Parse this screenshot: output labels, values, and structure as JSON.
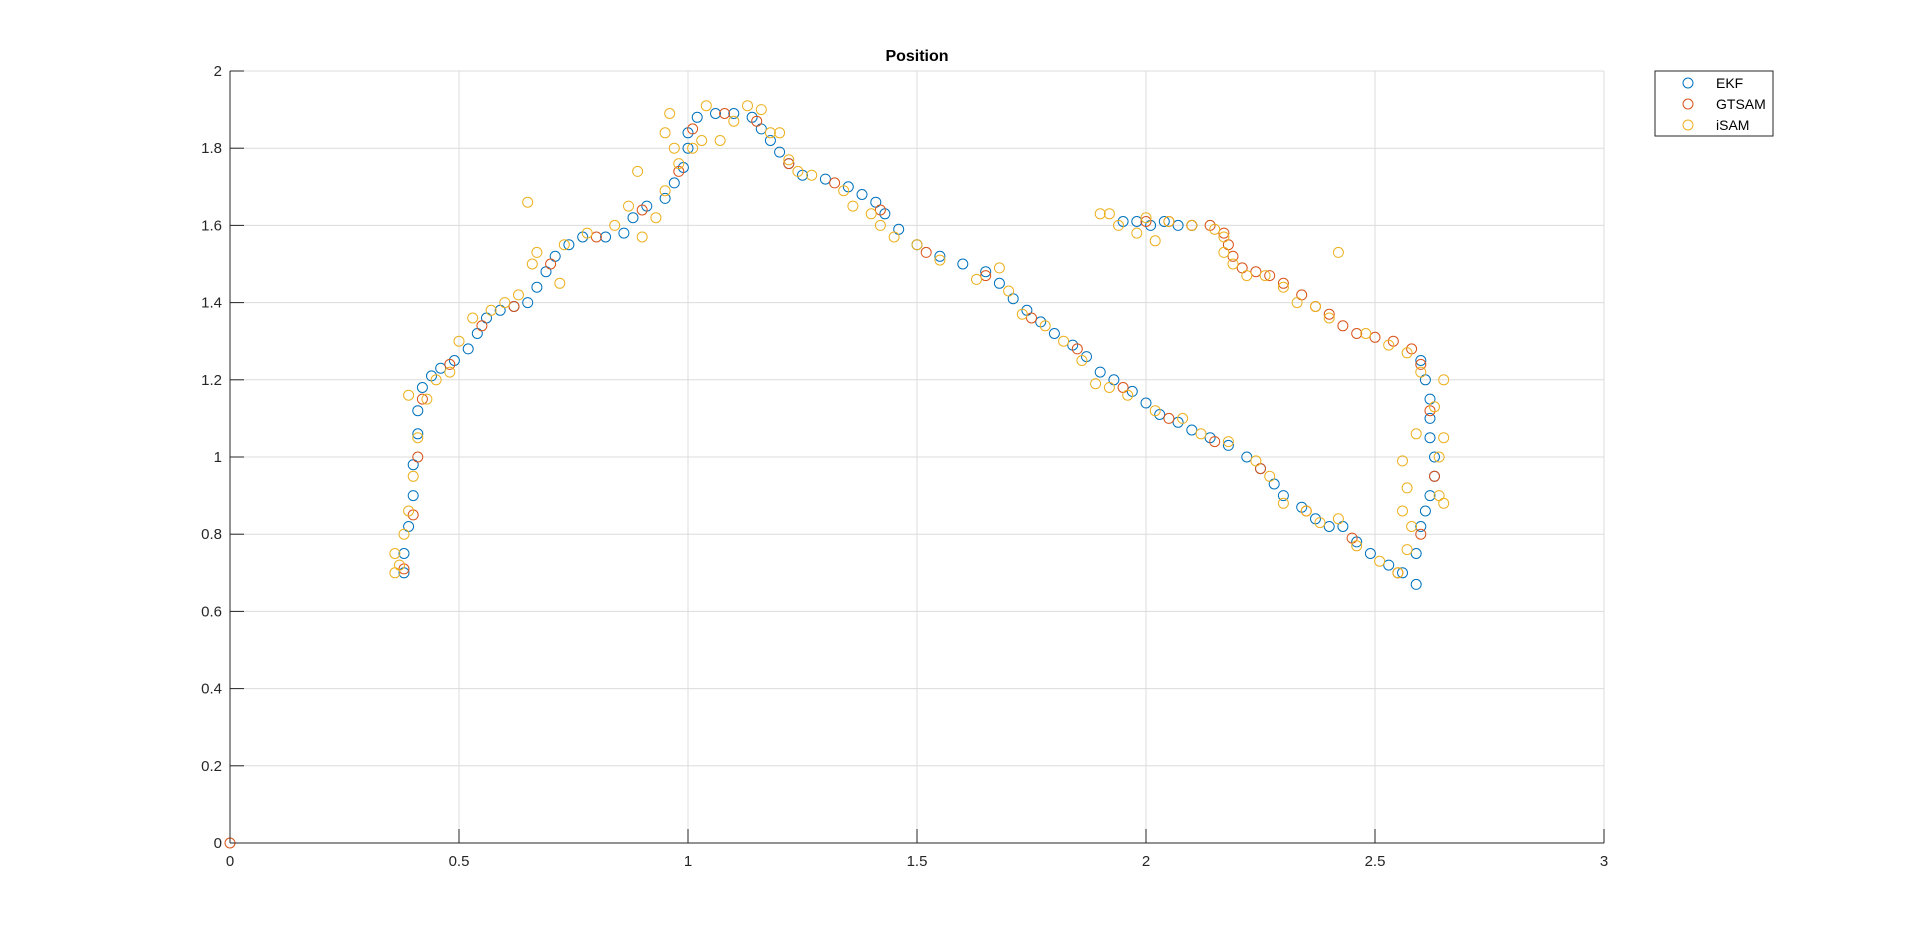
{
  "chart_data": {
    "type": "scatter",
    "title": "Position",
    "xlabel": "",
    "ylabel": "",
    "xlim": [
      0,
      3
    ],
    "ylim": [
      0,
      2
    ],
    "xticks": [
      "0",
      "0.5",
      "1",
      "1.5",
      "2",
      "2.5",
      "3"
    ],
    "yticks": [
      "0",
      "0.2",
      "0.4",
      "0.6",
      "0.8",
      "1",
      "1.2",
      "1.4",
      "1.6",
      "1.8",
      "2"
    ],
    "grid": true,
    "legend_position": "outside-top-right",
    "marker": "open-circle",
    "series": [
      {
        "name": "EKF",
        "color": "#0072BD",
        "points": [
          [
            0.38,
            0.7
          ],
          [
            0.38,
            0.75
          ],
          [
            0.39,
            0.82
          ],
          [
            0.4,
            0.9
          ],
          [
            0.4,
            0.98
          ],
          [
            0.41,
            1.06
          ],
          [
            0.41,
            1.12
          ],
          [
            0.42,
            1.18
          ],
          [
            0.44,
            1.21
          ],
          [
            0.46,
            1.23
          ],
          [
            0.49,
            1.25
          ],
          [
            0.52,
            1.28
          ],
          [
            0.54,
            1.32
          ],
          [
            0.56,
            1.36
          ],
          [
            0.59,
            1.38
          ],
          [
            0.62,
            1.39
          ],
          [
            0.65,
            1.4
          ],
          [
            0.67,
            1.44
          ],
          [
            0.69,
            1.48
          ],
          [
            0.71,
            1.52
          ],
          [
            0.74,
            1.55
          ],
          [
            0.77,
            1.57
          ],
          [
            0.82,
            1.57
          ],
          [
            0.86,
            1.58
          ],
          [
            0.88,
            1.62
          ],
          [
            0.91,
            1.65
          ],
          [
            0.95,
            1.67
          ],
          [
            0.97,
            1.71
          ],
          [
            0.99,
            1.75
          ],
          [
            1.0,
            1.8
          ],
          [
            1.0,
            1.84
          ],
          [
            1.02,
            1.88
          ],
          [
            1.06,
            1.89
          ],
          [
            1.1,
            1.89
          ],
          [
            1.14,
            1.88
          ],
          [
            1.16,
            1.85
          ],
          [
            1.18,
            1.82
          ],
          [
            1.2,
            1.79
          ],
          [
            1.22,
            1.76
          ],
          [
            1.25,
            1.73
          ],
          [
            1.3,
            1.72
          ],
          [
            1.35,
            1.7
          ],
          [
            1.38,
            1.68
          ],
          [
            1.41,
            1.66
          ],
          [
            1.43,
            1.63
          ],
          [
            1.46,
            1.59
          ],
          [
            1.5,
            1.55
          ],
          [
            1.55,
            1.52
          ],
          [
            1.6,
            1.5
          ],
          [
            1.65,
            1.48
          ],
          [
            1.68,
            1.45
          ],
          [
            1.71,
            1.41
          ],
          [
            1.74,
            1.38
          ],
          [
            1.77,
            1.35
          ],
          [
            1.8,
            1.32
          ],
          [
            1.84,
            1.29
          ],
          [
            1.87,
            1.26
          ],
          [
            1.9,
            1.22
          ],
          [
            1.93,
            1.2
          ],
          [
            1.97,
            1.17
          ],
          [
            2.0,
            1.14
          ],
          [
            2.03,
            1.11
          ],
          [
            2.07,
            1.09
          ],
          [
            2.1,
            1.07
          ],
          [
            2.14,
            1.05
          ],
          [
            2.18,
            1.03
          ],
          [
            2.22,
            1.0
          ],
          [
            2.25,
            0.97
          ],
          [
            2.28,
            0.93
          ],
          [
            2.3,
            0.9
          ],
          [
            2.34,
            0.87
          ],
          [
            2.37,
            0.84
          ],
          [
            2.4,
            0.82
          ],
          [
            2.43,
            0.82
          ],
          [
            2.46,
            0.78
          ],
          [
            2.49,
            0.75
          ],
          [
            2.53,
            0.72
          ],
          [
            2.56,
            0.7
          ],
          [
            2.59,
            0.67
          ],
          [
            2.59,
            0.75
          ],
          [
            2.6,
            0.82
          ],
          [
            2.61,
            0.86
          ],
          [
            2.62,
            0.9
          ],
          [
            2.63,
            0.95
          ],
          [
            2.63,
            1.0
          ],
          [
            2.62,
            1.05
          ],
          [
            2.62,
            1.1
          ],
          [
            2.62,
            1.15
          ],
          [
            2.61,
            1.2
          ],
          [
            2.6,
            1.25
          ],
          [
            1.95,
            1.61
          ],
          [
            1.98,
            1.61
          ],
          [
            2.01,
            1.6
          ],
          [
            2.04,
            1.61
          ],
          [
            2.07,
            1.6
          ],
          [
            2.1,
            1.6
          ]
        ]
      },
      {
        "name": "GTSAM",
        "color": "#D95319",
        "points": [
          [
            0,
            0
          ],
          [
            0.38,
            0.71
          ],
          [
            0.4,
            0.85
          ],
          [
            0.41,
            1.0
          ],
          [
            0.42,
            1.15
          ],
          [
            0.48,
            1.24
          ],
          [
            0.55,
            1.34
          ],
          [
            0.62,
            1.39
          ],
          [
            0.7,
            1.5
          ],
          [
            0.8,
            1.57
          ],
          [
            0.9,
            1.64
          ],
          [
            0.98,
            1.74
          ],
          [
            1.01,
            1.85
          ],
          [
            1.08,
            1.89
          ],
          [
            1.15,
            1.87
          ],
          [
            1.22,
            1.76
          ],
          [
            1.32,
            1.71
          ],
          [
            1.42,
            1.64
          ],
          [
            1.52,
            1.53
          ],
          [
            1.65,
            1.47
          ],
          [
            1.75,
            1.36
          ],
          [
            1.85,
            1.28
          ],
          [
            1.95,
            1.18
          ],
          [
            2.05,
            1.1
          ],
          [
            2.15,
            1.04
          ],
          [
            2.25,
            0.97
          ],
          [
            2.35,
            0.86
          ],
          [
            2.45,
            0.79
          ],
          [
            2.55,
            0.7
          ],
          [
            2.6,
            0.8
          ],
          [
            2.63,
            0.95
          ],
          [
            2.62,
            1.12
          ],
          [
            2.6,
            1.24
          ],
          [
            2.58,
            1.28
          ],
          [
            2.54,
            1.3
          ],
          [
            2.5,
            1.31
          ],
          [
            2.46,
            1.32
          ],
          [
            2.43,
            1.34
          ],
          [
            2.4,
            1.37
          ],
          [
            2.37,
            1.39
          ],
          [
            2.34,
            1.42
          ],
          [
            2.3,
            1.45
          ],
          [
            2.27,
            1.47
          ],
          [
            2.24,
            1.48
          ],
          [
            2.21,
            1.49
          ],
          [
            2.19,
            1.52
          ],
          [
            2.18,
            1.55
          ],
          [
            2.17,
            1.58
          ],
          [
            2.14,
            1.6
          ],
          [
            2.1,
            1.6
          ],
          [
            2.05,
            1.61
          ],
          [
            2.0,
            1.61
          ]
        ]
      },
      {
        "name": "iSAM",
        "color": "#EDB120",
        "points": [
          [
            0.36,
            0.7
          ],
          [
            0.37,
            0.72
          ],
          [
            0.36,
            0.75
          ],
          [
            0.38,
            0.8
          ],
          [
            0.39,
            0.86
          ],
          [
            0.4,
            0.95
          ],
          [
            0.41,
            1.05
          ],
          [
            0.39,
            1.16
          ],
          [
            0.43,
            1.15
          ],
          [
            0.45,
            1.2
          ],
          [
            0.48,
            1.22
          ],
          [
            0.5,
            1.3
          ],
          [
            0.53,
            1.36
          ],
          [
            0.57,
            1.38
          ],
          [
            0.6,
            1.4
          ],
          [
            0.63,
            1.42
          ],
          [
            0.65,
            1.66
          ],
          [
            0.66,
            1.5
          ],
          [
            0.67,
            1.53
          ],
          [
            0.72,
            1.45
          ],
          [
            0.73,
            1.55
          ],
          [
            0.78,
            1.58
          ],
          [
            0.84,
            1.6
          ],
          [
            0.87,
            1.65
          ],
          [
            0.89,
            1.74
          ],
          [
            0.9,
            1.57
          ],
          [
            0.93,
            1.62
          ],
          [
            0.95,
            1.69
          ],
          [
            0.95,
            1.84
          ],
          [
            0.96,
            1.89
          ],
          [
            0.97,
            1.8
          ],
          [
            0.98,
            1.76
          ],
          [
            1.01,
            1.8
          ],
          [
            1.03,
            1.82
          ],
          [
            1.04,
            1.91
          ],
          [
            1.07,
            1.82
          ],
          [
            1.1,
            1.87
          ],
          [
            1.13,
            1.91
          ],
          [
            1.16,
            1.9
          ],
          [
            1.18,
            1.84
          ],
          [
            1.2,
            1.84
          ],
          [
            1.22,
            1.77
          ],
          [
            1.24,
            1.74
          ],
          [
            1.27,
            1.73
          ],
          [
            1.34,
            1.69
          ],
          [
            1.36,
            1.65
          ],
          [
            1.4,
            1.63
          ],
          [
            1.42,
            1.6
          ],
          [
            1.45,
            1.57
          ],
          [
            1.5,
            1.55
          ],
          [
            1.55,
            1.51
          ],
          [
            1.63,
            1.46
          ],
          [
            1.68,
            1.49
          ],
          [
            1.7,
            1.43
          ],
          [
            1.73,
            1.37
          ],
          [
            1.78,
            1.34
          ],
          [
            1.82,
            1.3
          ],
          [
            1.86,
            1.25
          ],
          [
            1.89,
            1.19
          ],
          [
            1.92,
            1.18
          ],
          [
            1.96,
            1.16
          ],
          [
            2.02,
            1.12
          ],
          [
            2.08,
            1.1
          ],
          [
            2.12,
            1.06
          ],
          [
            2.18,
            1.04
          ],
          [
            2.24,
            0.99
          ],
          [
            2.27,
            0.95
          ],
          [
            2.3,
            0.88
          ],
          [
            2.35,
            0.86
          ],
          [
            2.38,
            0.83
          ],
          [
            2.42,
            0.84
          ],
          [
            2.46,
            0.77
          ],
          [
            2.51,
            0.73
          ],
          [
            2.55,
            0.7
          ],
          [
            2.57,
            0.76
          ],
          [
            2.58,
            0.82
          ],
          [
            2.56,
            0.86
          ],
          [
            2.57,
            0.92
          ],
          [
            2.56,
            0.99
          ],
          [
            2.59,
            1.06
          ],
          [
            2.64,
            0.9
          ],
          [
            2.65,
            0.88
          ],
          [
            2.64,
            1.0
          ],
          [
            2.65,
            1.05
          ],
          [
            2.63,
            1.13
          ],
          [
            2.65,
            1.2
          ],
          [
            2.6,
            1.22
          ],
          [
            2.57,
            1.27
          ],
          [
            2.53,
            1.29
          ],
          [
            2.48,
            1.32
          ],
          [
            2.42,
            1.53
          ],
          [
            2.4,
            1.36
          ],
          [
            2.37,
            1.39
          ],
          [
            2.33,
            1.4
          ],
          [
            2.3,
            1.44
          ],
          [
            2.26,
            1.47
          ],
          [
            2.22,
            1.47
          ],
          [
            2.19,
            1.5
          ],
          [
            2.17,
            1.53
          ],
          [
            2.17,
            1.57
          ],
          [
            2.15,
            1.59
          ],
          [
            2.1,
            1.6
          ],
          [
            2.05,
            1.61
          ],
          [
            2.02,
            1.56
          ],
          [
            1.98,
            1.58
          ],
          [
            1.94,
            1.6
          ],
          [
            1.9,
            1.63
          ],
          [
            1.92,
            1.63
          ],
          [
            2.0,
            1.62
          ]
        ]
      }
    ]
  }
}
